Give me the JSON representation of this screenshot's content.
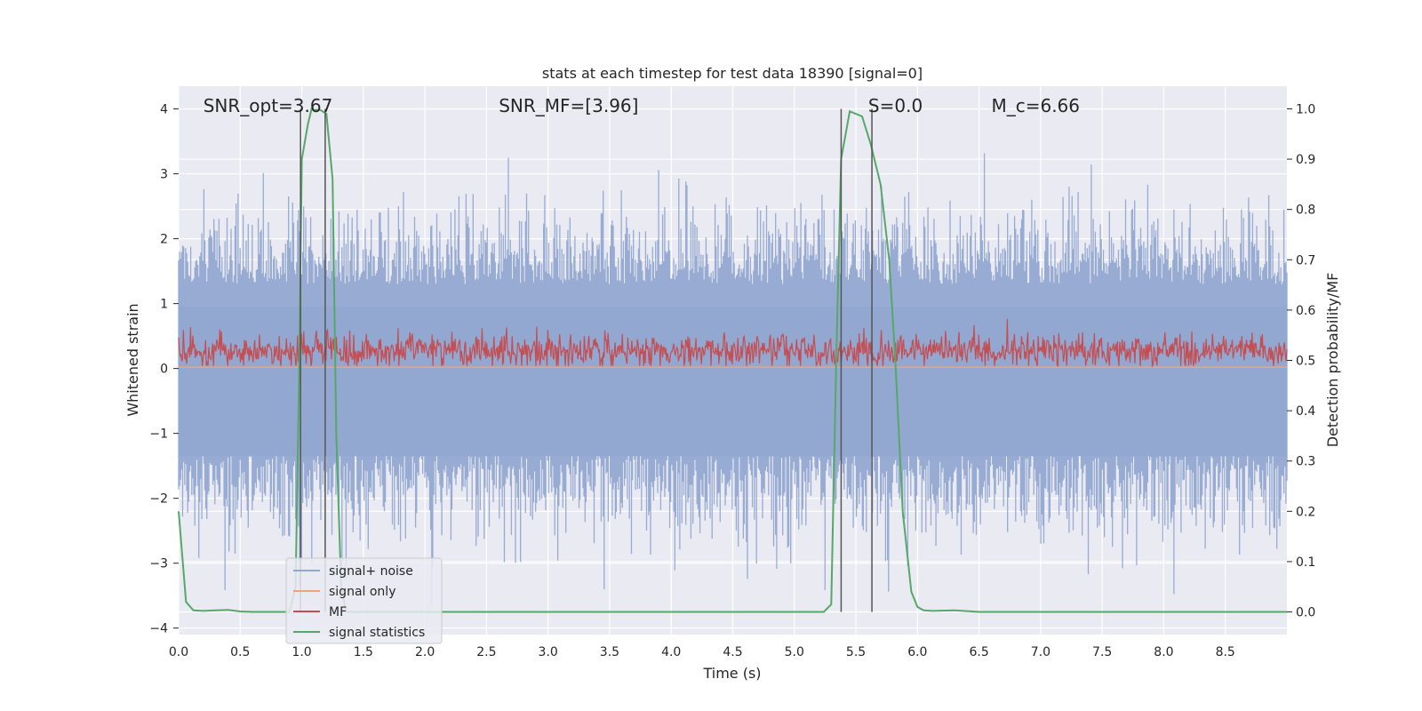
{
  "chart_data": {
    "type": "line",
    "title": "stats at each timestep for test data 18390 [signal=0]",
    "xlabel": "Time (s)",
    "ylabel_left": "Whitened strain",
    "ylabel_right": "Detection probability/MF",
    "xlim": [
      0.0,
      9.0
    ],
    "ylim_left": [
      -4.1,
      4.35
    ],
    "ylim_right": [
      -0.045,
      1.045
    ],
    "x_ticks": [
      0.0,
      0.5,
      1.0,
      1.5,
      2.0,
      2.5,
      3.0,
      3.5,
      4.0,
      4.5,
      5.0,
      5.5,
      6.0,
      6.5,
      7.0,
      7.5,
      8.0,
      8.5
    ],
    "x_tick_labels": [
      "0.0",
      "0.5",
      "1.0",
      "1.5",
      "2.0",
      "2.5",
      "3.0",
      "3.5",
      "4.0",
      "4.5",
      "5.0",
      "5.5",
      "6.0",
      "6.5",
      "7.0",
      "7.5",
      "8.0",
      "8.5"
    ],
    "y_left_ticks": [
      -4,
      -3,
      -2,
      -1,
      0,
      1,
      2,
      3,
      4
    ],
    "y_left_tick_labels": [
      "−4",
      "−3",
      "−2",
      "−1",
      "0",
      "1",
      "2",
      "3",
      "4"
    ],
    "y_right_ticks": [
      0.0,
      0.1,
      0.2,
      0.3,
      0.4,
      0.5,
      0.6,
      0.7,
      0.8,
      0.9,
      1.0
    ],
    "y_right_tick_labels": [
      "0.0",
      "0.1",
      "0.2",
      "0.3",
      "0.4",
      "0.5",
      "0.6",
      "0.7",
      "0.8",
      "0.9",
      "1.0"
    ],
    "annotations": [
      {
        "text": "SNR_opt=3.67",
        "x": 0.2,
        "y": 4.05
      },
      {
        "text": "SNR_MF=[3.96]",
        "x": 2.6,
        "y": 4.05
      },
      {
        "text": "S=0.0",
        "x": 5.6,
        "y": 4.05
      },
      {
        "text": "M_c=6.66",
        "x": 6.6,
        "y": 4.05
      }
    ],
    "series": [
      {
        "name": "signal+ noise",
        "color": "#92a8d1",
        "kind": "noise",
        "envelope": 2.2,
        "peak": 3.45
      },
      {
        "name": "signal only",
        "color": "#e8a584",
        "kind": "flat",
        "value": 0.02
      },
      {
        "name": "MF",
        "color": "#c44e52",
        "kind": "mf",
        "base": 0.27,
        "peak": 1.0
      },
      {
        "name": "signal statistics",
        "color": "#55a868",
        "kind": "stat",
        "axis": "right",
        "x": [
          0.0,
          0.06,
          0.12,
          0.2,
          0.3,
          0.4,
          0.5,
          0.6,
          0.9,
          0.95,
          0.98,
          1.0,
          1.05,
          1.08,
          1.1,
          1.15,
          1.2,
          1.25,
          1.28,
          1.32,
          1.36,
          1.4,
          1.6,
          3.0,
          5.0,
          5.24,
          5.3,
          5.34,
          5.38,
          5.45,
          5.55,
          5.62,
          5.7,
          5.77,
          5.82,
          5.88,
          5.95,
          6.0,
          6.05,
          6.12,
          6.3,
          6.5,
          9.0
        ],
        "y": [
          0.2,
          0.02,
          0.003,
          0.002,
          0.003,
          0.004,
          0.001,
          0.0,
          0.0,
          0.05,
          0.5,
          0.9,
          0.97,
          1.0,
          0.998,
          0.998,
          0.99,
          0.86,
          0.35,
          0.05,
          0.0,
          0.0,
          0.0,
          0.0,
          0.0,
          0.0,
          0.015,
          0.5,
          0.9,
          0.995,
          0.985,
          0.93,
          0.85,
          0.7,
          0.5,
          0.2,
          0.04,
          0.01,
          0.003,
          0.002,
          0.003,
          0.0,
          0.0
        ]
      },
      {
        "name": "markers",
        "kind": "vlines",
        "color": "#555555",
        "x": [
          0.99,
          1.19,
          5.38,
          5.63
        ]
      }
    ],
    "legend_labels": [
      "signal+ noise",
      "signal only",
      "MF",
      "signal statistics"
    ],
    "legend_position": "lower-left"
  }
}
